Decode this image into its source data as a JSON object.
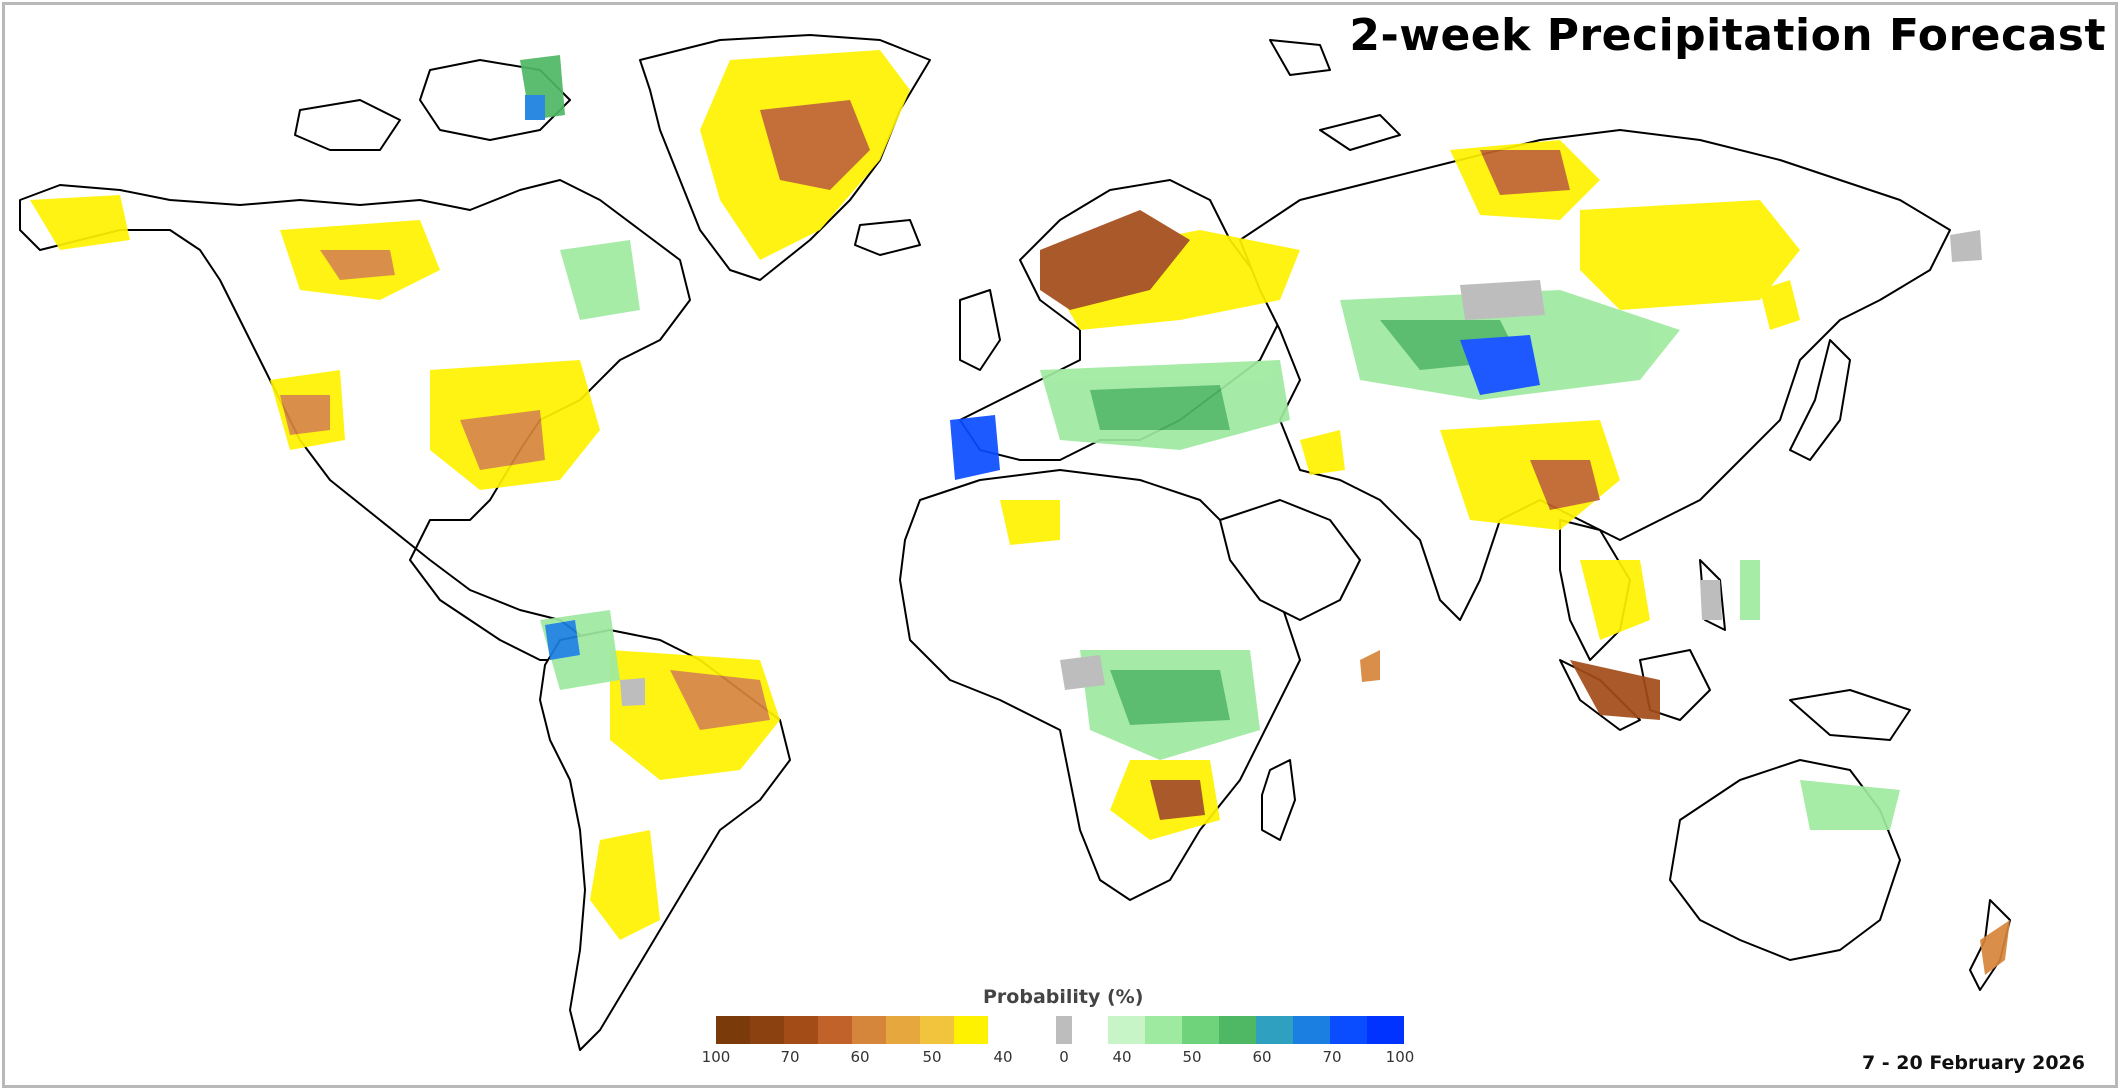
{
  "title": "2-week Precipitation Forecast",
  "date_range": "7 - 20 February 2026",
  "legend": {
    "title": "Probability (%)",
    "dry_colors": [
      "#7a3a0a",
      "#8b4210",
      "#a34c18",
      "#c0622a",
      "#d6863a",
      "#e6a83e",
      "#f2c33c",
      "#fff200"
    ],
    "neutral_color": "#bdbdbd",
    "wet_colors": [
      "#c8f5c8",
      "#9eeaa0",
      "#6ed37a",
      "#4fb865",
      "#2fa0c0",
      "#1a7fe0",
      "#0a4cff",
      "#0033ff"
    ],
    "dry_ticks": [
      "100",
      "70",
      "60",
      "50",
      "40"
    ],
    "neutral_tick": "0",
    "wet_ticks": [
      "40",
      "50",
      "60",
      "70",
      "100"
    ]
  },
  "colors": {
    "background": "#ffffff",
    "border": "#b8b8b8",
    "coastline": "#000000"
  }
}
